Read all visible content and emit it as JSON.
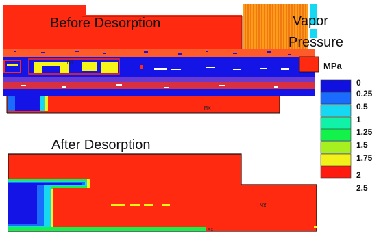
{
  "titles": {
    "before": "Before  Desorption",
    "after": "After  Desorption"
  },
  "legend": {
    "title_line1": "Vapor",
    "title_line2": "Pressure",
    "unit": "MPa",
    "values": [
      "0",
      "0.25",
      "0.5",
      "1",
      "1.25",
      "1.5",
      "1.75",
      "2",
      "2.5"
    ],
    "colors": [
      "#1010e0",
      "#1a6cff",
      "#16d8f2",
      "#10f2a8",
      "#12f24a",
      "#a6f020",
      "#f2f21a",
      "#ff1a10"
    ]
  },
  "markers": {
    "before_mx": "MX",
    "after_mx": "MX"
  },
  "palette": {
    "red": "#ff2a10",
    "orange": "#ff9b1a",
    "blue": "#1414e6",
    "yellow": "#f5f518",
    "white": "#ffffff"
  }
}
